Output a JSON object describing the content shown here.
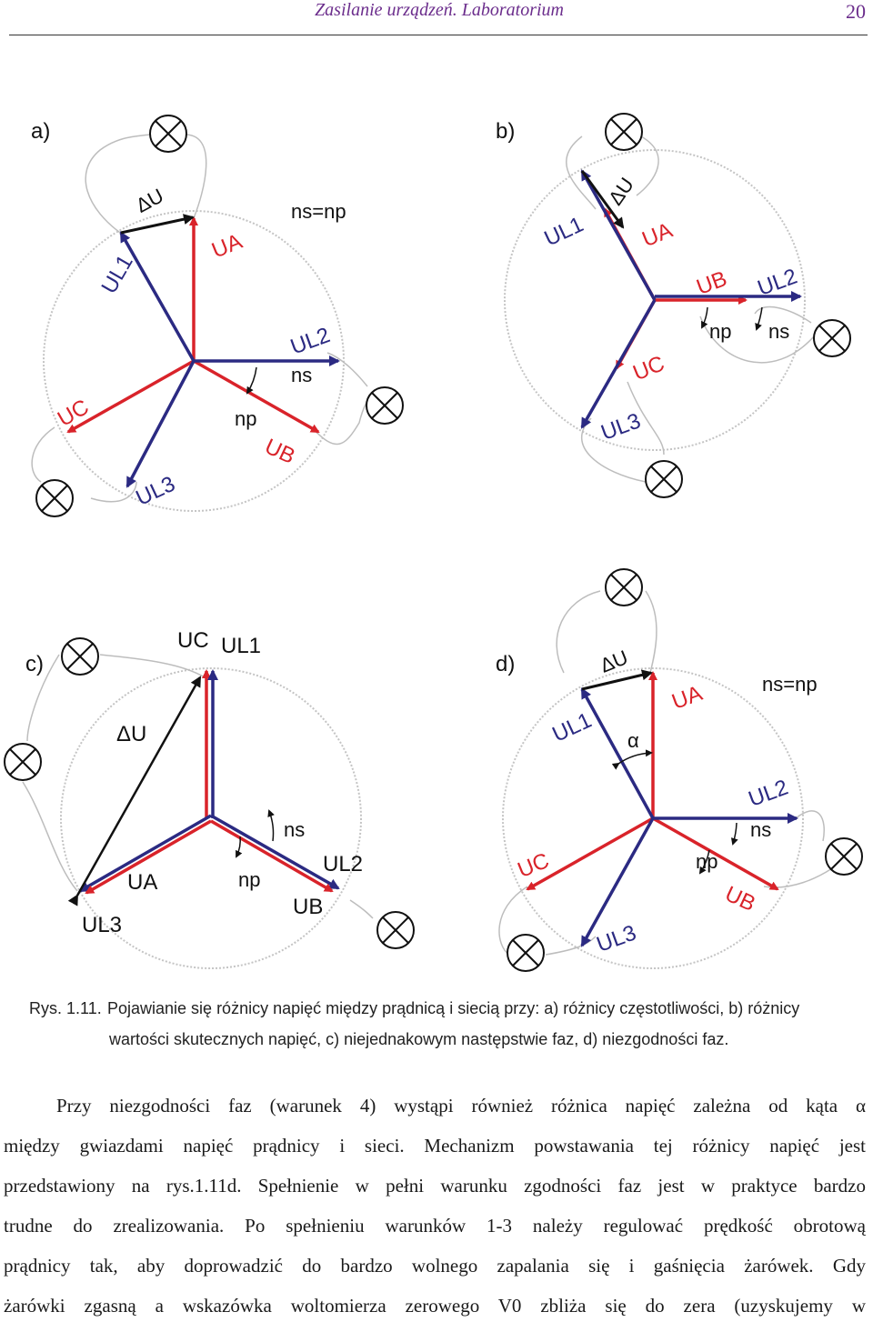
{
  "header": {
    "title": "Zasilanie urządzeń. Laboratorium",
    "page_number": "20"
  },
  "figure": {
    "panels": [
      {
        "label": "a)",
        "speed": "ns=np",
        "ul1": "UL1",
        "ua": "UA",
        "ul2": "UL2",
        "ub": "UB",
        "uc": "UC",
        "ul3": "UL3",
        "du": "ΔU",
        "ns": "ns",
        "np": "np"
      },
      {
        "label": "b)",
        "ul1": "UL1",
        "ua": "UA",
        "ul2": "UL2",
        "ub": "UB",
        "uc": "UC",
        "ul3": "UL3",
        "du": "ΔU",
        "ns": "ns",
        "np": "np"
      },
      {
        "label": "c)",
        "ul1": "UL1",
        "ua": "UA",
        "ul2": "UL2",
        "ub": "UB",
        "uc": "UC",
        "ul3": "UL3",
        "du": "ΔU",
        "ns": "ns",
        "np": "np"
      },
      {
        "label": "d)",
        "speed": "ns=np",
        "ul1": "UL1",
        "ua": "UA",
        "ul2": "UL2",
        "ub": "UB",
        "uc": "UC",
        "ul3": "UL3",
        "du": "ΔU",
        "ns": "ns",
        "np": "np",
        "alpha": "α"
      }
    ],
    "caption_number": "Rys. 1.11.",
    "caption_line1": "Pojawianie się różnicy napięć między prądnicą i siecią przy: a) różnicy częstotliwości, b) różnicy",
    "caption_line2": "wartości skutecznych napięć, c) niejednakowym następstwie faz, d) niezgodności faz."
  },
  "body": {
    "line1": "Przy niezgodności faz (warunek 4) wystąpi również różnica napięć zależna od kąta α",
    "line2": "między gwiazdami napięć prądnicy i sieci. Mechanizm powstawania tej różnicy napięć jest",
    "line3": "przedstawiony na rys.1.11d. Spełnienie w pełni warunku zgodności faz jest w praktyce bardzo",
    "line4": "trudne do zrealizowania. Po spełnieniu warunków 1-3 należy regulować prędkość obrotową",
    "line5": "prądnicy tak, aby doprowadzić do bardzo wolnego zapalania się i gaśnięcia żarówek. Gdy",
    "line6": "żarówki zgasną a wskazówka woltomierza zerowego V0 zbliża się do zera (uzyskujemy w"
  },
  "colors": {
    "generator": "#d9232a",
    "network": "#2b2a82",
    "difference": "#111111",
    "circle": "#b8b8b8"
  }
}
